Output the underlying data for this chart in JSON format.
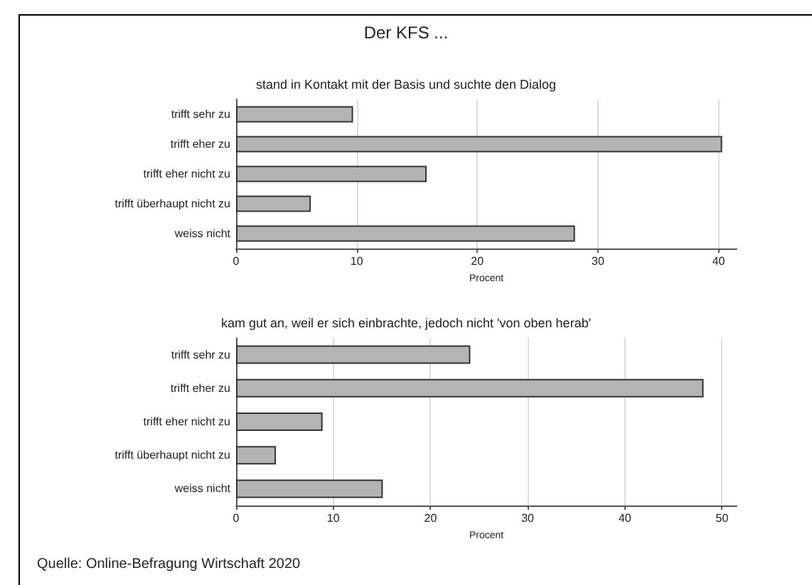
{
  "chart_data": [
    {
      "type": "bar",
      "orientation": "horizontal",
      "title": "Der KFS ...",
      "subtitle": "stand in Kontakt mit der Basis und suchte den Dialog",
      "xlabel": "Procent",
      "categories": [
        "trifft sehr zu",
        "trifft eher zu",
        "trifft eher nicht zu",
        "trifft überhaupt nicht zu",
        "weiss nicht"
      ],
      "series": [
        {
          "color": "#b4b4b4",
          "values": [
            9.7,
            40.3,
            15.8,
            6.2,
            28.1
          ]
        }
      ],
      "xlim": [
        0,
        41.5
      ],
      "xticks": [
        0,
        10,
        20,
        30,
        40
      ],
      "grid": "x"
    },
    {
      "type": "bar",
      "orientation": "horizontal",
      "title": "kam gut an, weil er sich einbrachte, jedoch nicht 'von oben herab'",
      "xlabel": "Procent",
      "categories": [
        "trifft sehr zu",
        "trifft eher zu",
        "trifft eher nicht zu",
        "trifft überhaupt nicht zu",
        "weiss nicht"
      ],
      "series": [
        {
          "color": "#b4b4b4",
          "values": [
            24.1,
            48.1,
            8.9,
            4.1,
            15.1
          ]
        }
      ],
      "xlim": [
        0,
        51.5
      ],
      "xticks": [
        0,
        10,
        20,
        30,
        40,
        50
      ],
      "grid": "x",
      "annotations": [
        "Quelle: Online-Befragung Wirtschaft 2020"
      ]
    }
  ]
}
